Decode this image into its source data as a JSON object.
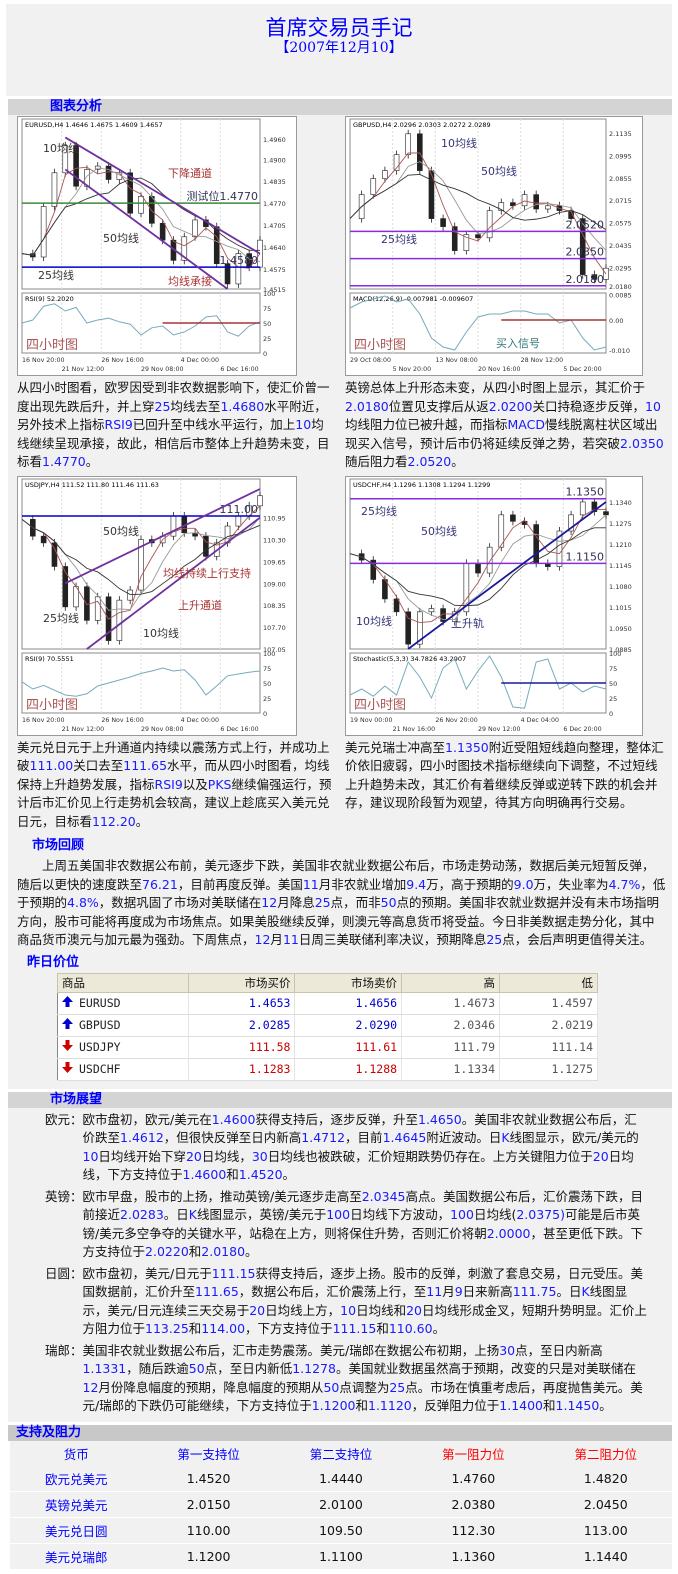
{
  "header": {
    "title": "首席交易员手记",
    "date": "【2007年12月10】"
  },
  "sections": {
    "charts": "图表分析",
    "review": "市场回顾",
    "prices": "昨日价位",
    "outlook": "市场展望",
    "sr": "支持及阻力"
  },
  "chart_data": [
    {
      "type": "line",
      "title": "EURUSD,H4  1.4646 1.4675 1.4609 1.4657",
      "ylim": [
        1.4515,
        1.499
      ],
      "y_ticks": [
        "1.4960",
        "1.4900",
        "1.4835",
        "1.4770",
        "1.4705",
        "1.4640",
        "1.4575",
        "1.4515"
      ],
      "x_ticks": [
        "16 Nov 20:00",
        "21 Nov 12:00",
        "26 Nov 16:00",
        "29 Nov 08:00",
        "4 Dec 00:00",
        "6 Dec 16:00"
      ],
      "closes": [
        1.462,
        1.461,
        1.476,
        1.486,
        1.494,
        1.482,
        1.487,
        1.488,
        1.484,
        1.486,
        1.474,
        1.479,
        1.471,
        1.466,
        1.46,
        1.467,
        1.472,
        1.47,
        1.459,
        1.453,
        1.462,
        1.458,
        1.466
      ],
      "levels": [
        {
          "value": 1.477,
          "color": "#3a8a3a",
          "label": "测试位1.4770"
        },
        {
          "value": 1.458,
          "color": "#0000cc",
          "label": "1.4580"
        }
      ],
      "channels": [
        [
          [
            4,
            1.4965
          ],
          [
            22,
            1.462
          ]
        ],
        [
          [
            4,
            1.487
          ],
          [
            19,
            1.4515
          ]
        ]
      ],
      "annotations": [
        "10均线",
        "下降通道",
        "50均线",
        "25均线",
        "均线承接"
      ],
      "indicator": {
        "name": "RSI(9) 52.2020",
        "ticks": [
          "100",
          "75",
          "50",
          "25",
          "0"
        ],
        "ylim": [
          0,
          100
        ],
        "values": [
          50,
          55,
          78,
          82,
          70,
          76,
          50,
          55,
          58,
          52,
          48,
          30,
          42,
          45,
          30,
          35,
          45,
          60,
          62,
          35,
          28,
          45,
          52
        ],
        "level": 50
      },
      "panel_label": "四小时图"
    },
    {
      "type": "line",
      "title": "GBPUSD,H4  2.0296 2.0303 2.0272 2.0289",
      "ylim": [
        2.016,
        2.116
      ],
      "y_ticks": [
        "2.1135",
        "2.0995",
        "2.0855",
        "2.0715",
        "2.0575",
        "2.0435",
        "2.0295",
        "2.0180"
      ],
      "x_ticks": [
        "29 Oct 08:00",
        "5 Nov 20:00",
        "13 Nov 08:00",
        "20 Nov 16:00",
        "28 Nov 12:00",
        "5 Dec 20:00"
      ],
      "closes": [
        2.06,
        2.075,
        2.085,
        2.09,
        2.1,
        2.113,
        2.09,
        2.06,
        2.055,
        2.04,
        2.05,
        2.048,
        2.065,
        2.07,
        2.068,
        2.075,
        2.066,
        2.068,
        2.065,
        2.06,
        2.025,
        2.022,
        2.029
      ],
      "levels": [
        {
          "value": 2.052,
          "color": "#8a2be2",
          "label": "2.0520"
        },
        {
          "value": 2.035,
          "color": "#8a2be2",
          "label": "2.0350"
        },
        {
          "value": 2.018,
          "color": "#8a2be2",
          "label": "2.0180"
        }
      ],
      "channels": [],
      "annotations": [
        "10均线",
        "50均线",
        "25均线",
        "买入信号"
      ],
      "indicator": {
        "name": "MACD(12,26,9)  -0.007981  -0.009607",
        "ticks": [
          "0.0085",
          "0.00",
          "-0.010"
        ],
        "ylim": [
          -0.011,
          0.009
        ],
        "values": [
          0.004,
          0.006,
          0.007,
          0.008,
          0.006,
          0.007,
          0.002,
          -0.006,
          -0.009,
          -0.01,
          -0.004,
          0.001,
          0.002,
          0.002,
          0.003,
          0.003,
          0.002,
          0.002,
          -0.001,
          0.0,
          -0.006,
          -0.01,
          -0.009
        ],
        "level": 0
      },
      "panel_label": "四小时图"
    },
    {
      "type": "line",
      "title": "USDJPY,H4  111.52 111.80 111.46 111.63",
      "ylim": [
        107.05,
        111.8
      ],
      "y_ticks": [
        "110.95",
        "110.30",
        "109.65",
        "109.00",
        "108.35",
        "107.70",
        "107.05"
      ],
      "x_ticks": [
        "16 Nov 20:00",
        "21 Nov 12:00",
        "26 Nov 16:00",
        "29 Nov 08:00",
        "4 Dec 00:00",
        "6 Dec 16:00"
      ],
      "closes": [
        110.9,
        110.4,
        110.2,
        109.5,
        108.3,
        108.9,
        107.9,
        108.6,
        107.3,
        108.5,
        108.8,
        110.3,
        110.2,
        110.4,
        111.0,
        110.5,
        110.4,
        109.8,
        110.2,
        110.7,
        111.0,
        111.3,
        111.6
      ],
      "levels": [
        {
          "value": 111.0,
          "color": "#0000cc",
          "label": "111.00"
        }
      ],
      "channels": [
        [
          [
            4,
            109.0
          ],
          [
            22,
            111.8
          ]
        ],
        [
          [
            6,
            107.05
          ],
          [
            22,
            110.95
          ]
        ]
      ],
      "annotations": [
        "50均线",
        "25均线",
        "10均线",
        "上升通道",
        "均线持续上行支持"
      ],
      "indicator": {
        "name": "RSI(9) 70.5551",
        "ticks": [
          "100",
          "75",
          "50",
          "25",
          "0"
        ],
        "ylim": [
          0,
          100
        ],
        "values": [
          52,
          40,
          46,
          38,
          30,
          28,
          32,
          45,
          50,
          55,
          60,
          66,
          70,
          75,
          70,
          72,
          55,
          30,
          45,
          62,
          65,
          68,
          70
        ],
        "level": null
      },
      "panel_label": "四小时图"
    },
    {
      "type": "line",
      "title": "USDCHF,H4  1.1296 1.1308 1.1294 1.1299",
      "ylim": [
        1.0885,
        1.138
      ],
      "y_ticks": [
        "1.1340",
        "1.1275",
        "1.1210",
        "1.1145",
        "1.1080",
        "1.1015",
        "1.0950",
        "1.0885"
      ],
      "x_ticks": [
        "19 Nov 00:00",
        "21 Nov 16:00",
        "26 Nov 20:00",
        "29 Nov 12:00",
        "4 Dec 04:00",
        "6 Dec 20:00"
      ],
      "closes": [
        1.118,
        1.116,
        1.11,
        1.104,
        1.1,
        1.09,
        1.1,
        1.101,
        1.097,
        1.1,
        1.115,
        1.112,
        1.12,
        1.13,
        1.128,
        1.127,
        1.115,
        1.114,
        1.125,
        1.13,
        1.134,
        1.131,
        1.13
      ],
      "levels": [
        {
          "value": 1.135,
          "color": "#8a2be2",
          "label": "1.1350"
        },
        {
          "value": 1.115,
          "color": "#8a2be2",
          "label": "1.1150"
        }
      ],
      "channels": [
        [
          [
            5,
            1.0885
          ],
          [
            22,
            1.134
          ]
        ]
      ],
      "annotations": [
        "25均线",
        "50均线",
        "10均线",
        "上升轨"
      ],
      "indicator": {
        "name": "Stochastic(5,3,3)  34.7826  43.2907",
        "ticks": [
          "100",
          "75",
          "50",
          "25",
          "0"
        ],
        "ylim": [
          0,
          100
        ],
        "values": [
          30,
          40,
          28,
          45,
          30,
          85,
          60,
          25,
          75,
          90,
          40,
          70,
          95,
          60,
          10,
          8,
          85,
          90,
          40,
          50,
          35,
          45,
          40
        ],
        "level": 50
      },
      "panel_label": "四小时图"
    }
  ],
  "analysis": [
    "从四小时图看，欧罗因受到非农数据影响下，使汇价曾一度出现先跌后升，并上穿25均线去至1.4680水平附近，另外技术上指标RSI9已回升至中线水平运行，加上10均线继续呈现承接，故此，相信后市整体上升趋势未变，目标看1.4770。",
    "英镑总体上升形态未变，从四小时图上显示，其汇价于2.0180位置见支撑后从返2.0200关口持稳逐步反弹，10均线阻力位已被升越，而指标MACD慢线脱离柱状区域出现买入信号，预计后市仍将延续反弹之势，若突破2.0350随后阻力看2.0520。",
    "美元兑日元于上升通道内持续以震荡方式上行，并成功上破111.00关口去至111.65水平，而从四小时图看，均线保持上升趋势发展，指标RSI9以及PKS继续偏强运行，预计后市汇价见上行走势机会较高，建议上趁底买入美元兑日元，目标看112.20。",
    "美元兑瑞士冲高至1.1350附近受阻短线趋向整理，整体汇价依旧疲弱，四小时图技术指标继续向下调整，不过短线上升趋势未改，其汇价有着继续反弹或逆转下跌的机会并存，建议现阶段暂为观望，待其方向明确再行交易。"
  ],
  "review": "上周五美国非农数据公布前，美元逐步下跌，美国非农就业数据公布后，市场走势动荡，数据后美元短暂反弹，随后以更快的速度跌至76.21，目前再度反弹。美国11月非农就业增加9.4万，高于预期的9.0万，失业率为4.7%，低于预期的4.8%，数据巩固了市场对美联储在12月降息25点，而非50点的预期。美国非农就业数据并没有未市场指明方向，股市可能将再度成为市场焦点。如果美股继续反弹，则澳元等高息货币将受益。今日非美数据走势分化，其中商品货币澳元与加元最为强劲。下周焦点，12月11日周三美联储利率决议，预期降息25点，会后声明更值得关注。",
  "prices": {
    "headers": [
      "商品",
      "市场买价",
      "市场卖价",
      "高",
      "低"
    ],
    "rows": [
      {
        "symbol": "EURUSD",
        "dir": "up",
        "bid": "1.4653",
        "ask": "1.4656",
        "high": "1.4673",
        "low": "1.4597"
      },
      {
        "symbol": "GBPUSD",
        "dir": "up",
        "bid": "2.0285",
        "ask": "2.0290",
        "high": "2.0346",
        "low": "2.0219"
      },
      {
        "symbol": "USDJPY",
        "dir": "down",
        "bid": "111.58",
        "ask": "111.61",
        "high": "111.79",
        "low": "111.14"
      },
      {
        "symbol": "USDCHF",
        "dir": "down",
        "bid": "1.1283",
        "ask": "1.1288",
        "high": "1.1334",
        "low": "1.1275"
      }
    ],
    "colors": {
      "up": "#0000cc",
      "down": "#cc0000"
    }
  },
  "outlook": [
    {
      "label": "欧元：",
      "text": "欧市盘初，欧元/美元在1.4600获得支持后，逐步反弹，升至1.4650。美国非农就业数据公布后，汇价跌至1.4612，但很快反弹至日内新高1.4712，目前1.4645附近波动。日K线图显示，欧元/美元的10日均线开始下穿20日均线，30日均线也被跌破，汇价短期跌势仍存在。上方关键阻力位于20日均线，下方支持位于1.4600和1.4520。"
    },
    {
      "label": "英镑：",
      "text": "欧市早盘，股市的上扬，推动英镑/美元逐步走高至2.0345高点。美国数据公布后，汇价震荡下跌，目前接近2.0283。日K线图显示，英镑/美元于100日均线下方波动，100日均线(2.0375)可能是后市英镑/美元多空争夺的关键水平，站稳在上方，则将保住升势，否则汇价将朝2.0000，甚至更低下跌。下方支持位于2.0220和2.0180。"
    },
    {
      "label": "日圆：",
      "text": "欧市盘初，美元/日元于111.15获得支持后，逐步上扬。股市的反弹，刺激了套息交易，日元受压。美国数据前，汇价升至111.65，数据公布后，汇价震荡上行，至11月9日来新高111.75。日K线图显示，美元/日元连续三天交易于20日均线上方，10日均线和20日均线形成金叉，短期升势明显。汇价上方阻力位于113.25和114.00，下方支持位于111.15和110.60。"
    },
    {
      "label": "瑞郎：",
      "text": "美国非农就业数据公布后，汇市走势震荡。美元/瑞郎在数据公布初期，上扬30点，至日内新高1.1331，随后跌逾50点，至日内新低1.1278。美国就业数据虽然高于预期，改变的只是对美联储在12月份降息幅度的预期，降息幅度的预期从50点调整为25点。市场在慎重考虑后，再度抛售美元。美元/瑞郎的下跌仍可能继续，下方支持位于1.1200和1.1120，反弹阻力位于1.1400和1.1450。"
    }
  ],
  "sr": {
    "headers": [
      "货币",
      "第一支持位",
      "第二支持位",
      "第一阻力位",
      "第二阻力位"
    ],
    "rows": [
      [
        "欧元兑美元",
        "1.4520",
        "1.4440",
        "1.4760",
        "1.4820"
      ],
      [
        "英镑兑美元",
        "2.0150",
        "2.0100",
        "2.0380",
        "2.0450"
      ],
      [
        "美元兑日圆",
        "110.00",
        "109.50",
        "112.30",
        "113.00"
      ],
      [
        "美元兑瑞郎",
        "1.1200",
        "1.1100",
        "1.1360",
        "1.1440"
      ]
    ]
  }
}
